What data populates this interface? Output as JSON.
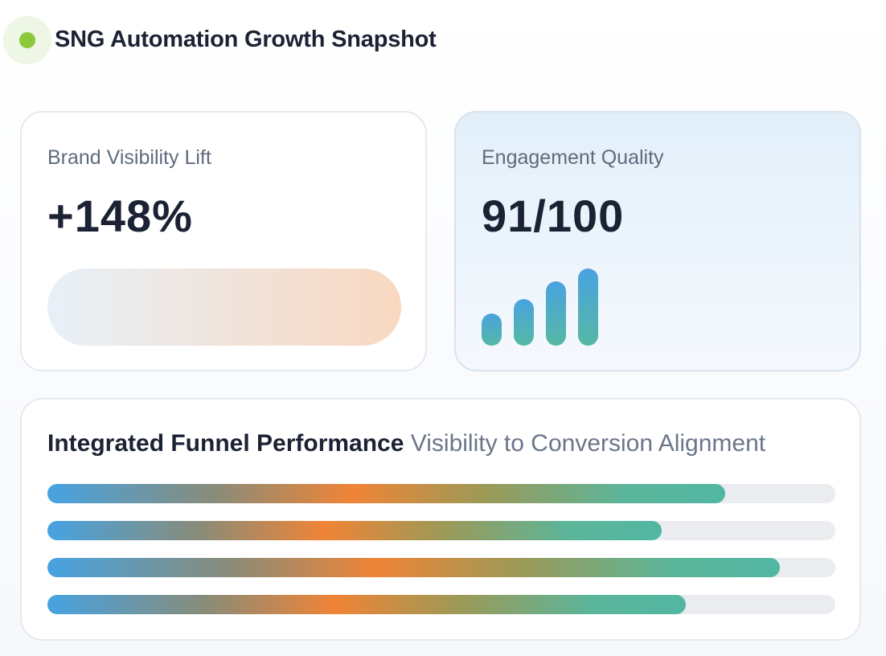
{
  "header": {
    "title": "SNG Automation Growth Snapshot",
    "status_color": "#8cc83c"
  },
  "cards": [
    {
      "label": "Brand Visibility Lift",
      "value": "+148%"
    },
    {
      "label": "Engagement Quality",
      "value": "91/100",
      "signal_levels": [
        0.42,
        0.6,
        0.83,
        1.0
      ]
    }
  ],
  "funnel": {
    "title": "Integrated Funnel Performance",
    "subtitle": "Visibility to Conversion Alignment",
    "bars": [
      86,
      78,
      93,
      81
    ]
  }
}
